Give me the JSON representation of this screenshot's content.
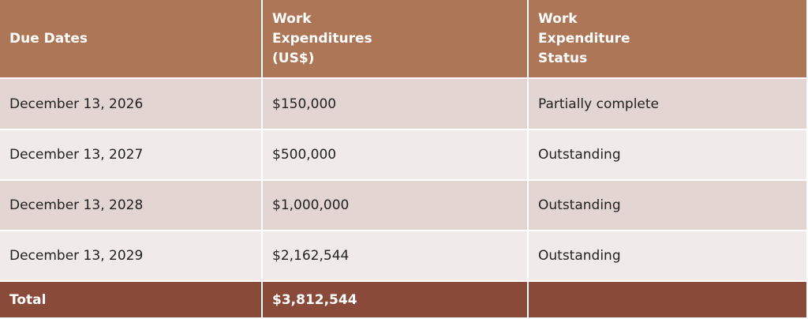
{
  "table": {
    "header": [
      "Due Dates",
      "Work Expenditures (US$)",
      "Work Expenditure Status"
    ],
    "rows": [
      [
        "December 13, 2026",
        "$150,000",
        "Partially complete"
      ],
      [
        "December 13, 2027",
        "$500,000",
        "Outstanding"
      ],
      [
        "December 13, 2028",
        "$1,000,000",
        "Outstanding"
      ],
      [
        "December 13, 2029",
        "$2,162,544",
        "Outstanding"
      ]
    ],
    "total": [
      "Total",
      "$3,812,544"
    ]
  }
}
